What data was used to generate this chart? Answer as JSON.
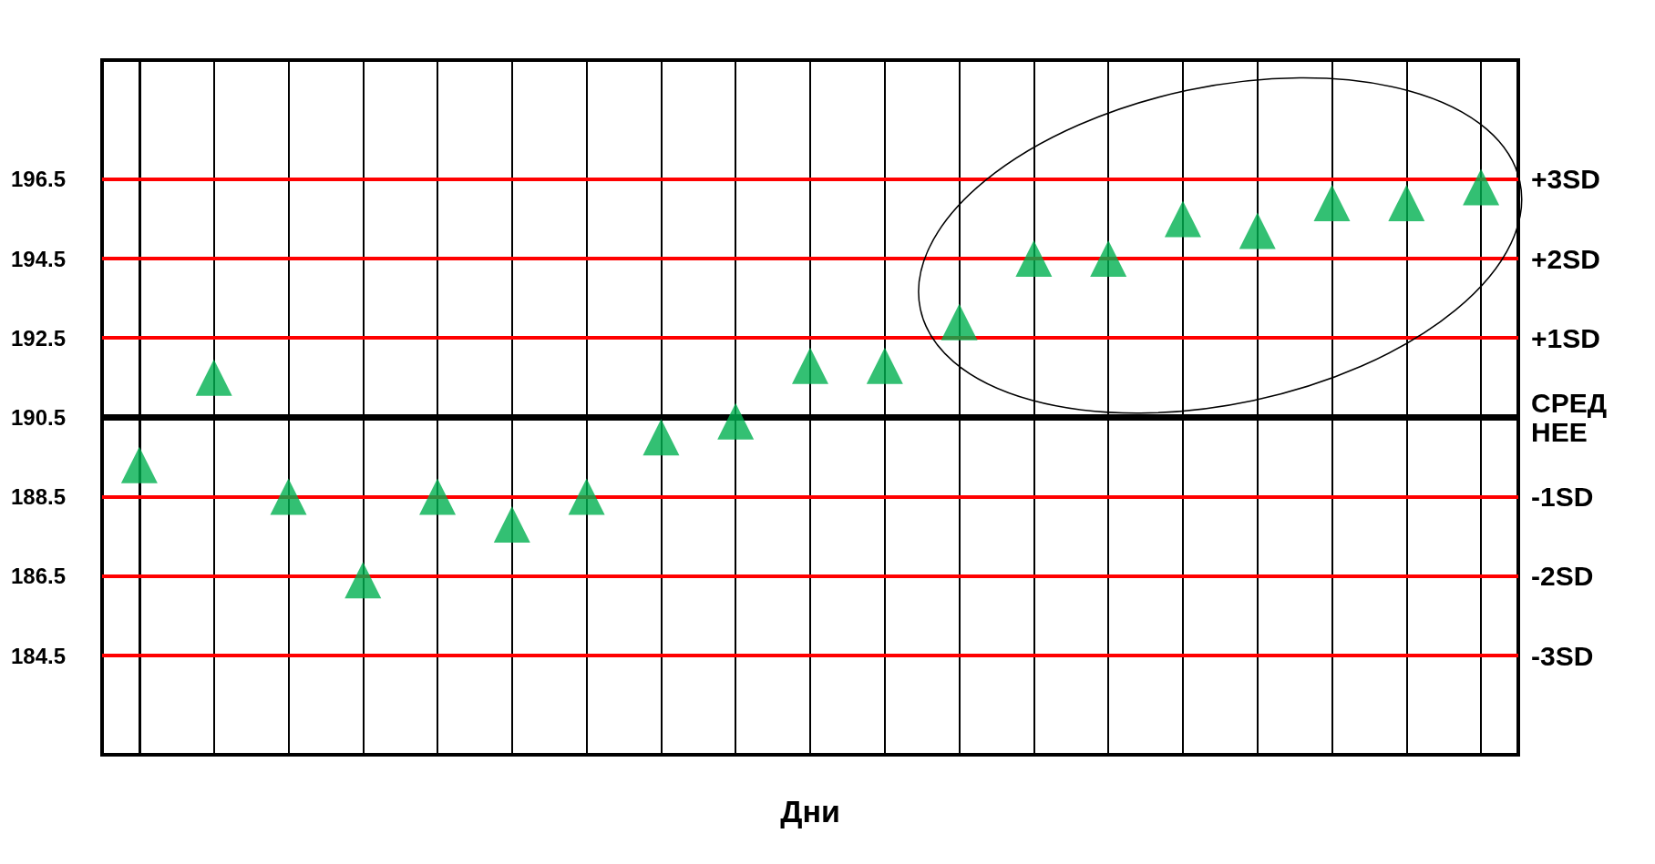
{
  "chart_data": {
    "type": "scatter",
    "xlabel": "Дни",
    "categories": [
      null,
      null,
      null,
      null,
      null,
      null,
      null,
      null,
      null,
      null,
      null,
      null,
      null,
      null,
      null,
      null,
      null,
      null,
      null
    ],
    "series": [
      {
        "color": "#00b050",
        "values": [
          189.3,
          191.5,
          188.5,
          186.4,
          188.5,
          187.8,
          188.5,
          190.0,
          190.4,
          191.8,
          191.8,
          192.9,
          194.5,
          194.5,
          195.5,
          195.2,
          195.9,
          195.9,
          196.3
        ]
      }
    ],
    "marker": "triangle",
    "ylim": [
      182,
      199.5
    ],
    "yticks": [
      184.5,
      186.5,
      188.5,
      190.5,
      192.5,
      194.5,
      196.5
    ],
    "grid": "x",
    "tick_labels": "y",
    "ref_lines": [
      {
        "axis": "y",
        "value": 196.5,
        "label": "+3SD",
        "color": "#ff0000"
      },
      {
        "axis": "y",
        "value": 194.5,
        "label": "+2SD",
        "color": "#ff0000"
      },
      {
        "axis": "y",
        "value": 192.5,
        "label": "+1SD",
        "color": "#ff0000"
      },
      {
        "axis": "y",
        "value": 190.5,
        "label": "СРЕДНЕЕ",
        "color": "#000000"
      },
      {
        "axis": "y",
        "value": 188.5,
        "label": "-1SD",
        "color": "#ff0000"
      },
      {
        "axis": "y",
        "value": 186.5,
        "label": "-2SD",
        "color": "#ff0000"
      },
      {
        "axis": "y",
        "value": 184.5,
        "label": "-3SD",
        "color": "#ff0000"
      }
    ]
  }
}
